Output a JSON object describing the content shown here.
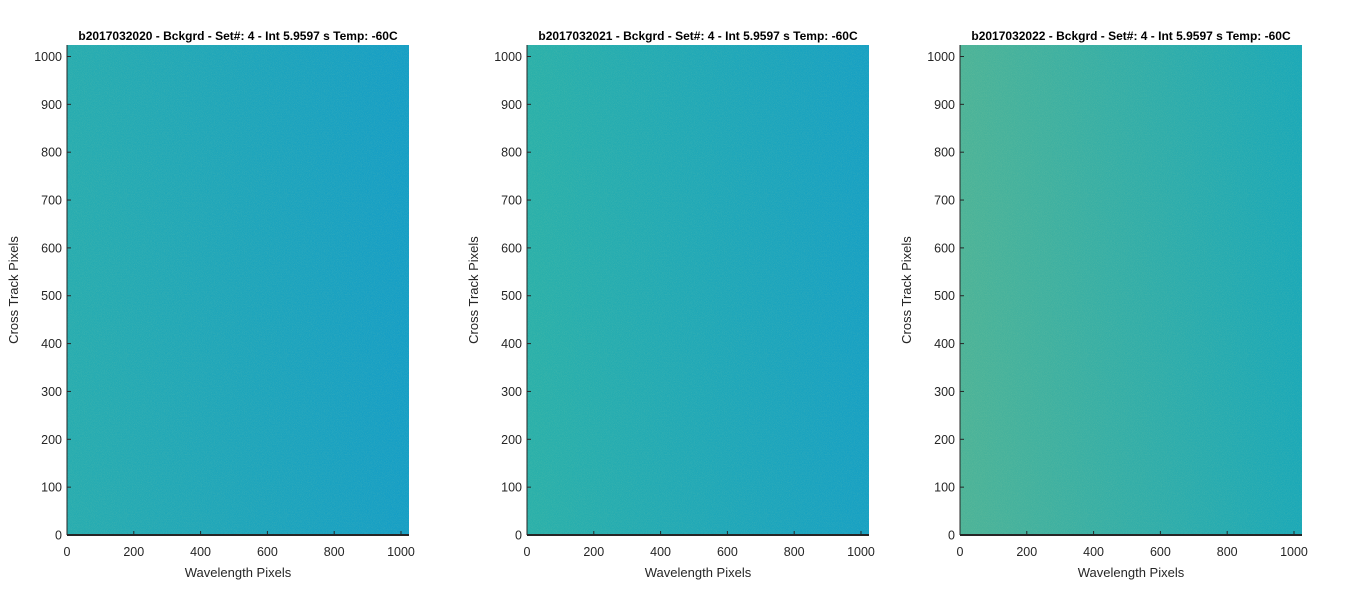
{
  "chart_data": [
    {
      "type": "heatmap",
      "title": "b2017032020 - Bckgrd - Set#: 4 - Int 5.9597 s Temp: -60C",
      "xlabel": "Wavelength Pixels",
      "ylabel": "Cross Track Pixels",
      "xlim": [
        0,
        1024
      ],
      "ylim": [
        0,
        1024
      ],
      "xticks": [
        0,
        200,
        400,
        600,
        800,
        1000
      ],
      "yticks": [
        0,
        100,
        200,
        300,
        400,
        500,
        600,
        700,
        800,
        900,
        1000
      ],
      "colors": {
        "left": "#27acb0",
        "right": "#159ec6"
      }
    },
    {
      "type": "heatmap",
      "title": "b2017032021 - Bckgrd - Set#: 4 - Int 5.9597 s Temp: -60C",
      "xlabel": "Wavelength Pixels",
      "ylabel": "Cross Track Pixels",
      "xlim": [
        0,
        1024
      ],
      "ylim": [
        0,
        1024
      ],
      "xticks": [
        0,
        200,
        400,
        600,
        800,
        1000
      ],
      "yticks": [
        0,
        100,
        200,
        300,
        400,
        500,
        600,
        700,
        800,
        900,
        1000
      ],
      "colors": {
        "left": "#2ab0aa",
        "right": "#16a0c4"
      }
    },
    {
      "type": "heatmap",
      "title": "b2017032022 - Bckgrd - Set#: 4 - Int 5.9597 s Temp: -60C",
      "xlabel": "Wavelength Pixels",
      "ylabel": "Cross Track Pixels",
      "xlim": [
        0,
        1024
      ],
      "ylim": [
        0,
        1024
      ],
      "xticks": [
        0,
        200,
        400,
        600,
        800,
        1000
      ],
      "yticks": [
        0,
        100,
        200,
        300,
        400,
        500,
        600,
        700,
        800,
        900,
        1000
      ],
      "colors": {
        "left": "#4cb398",
        "right": "#1aa8b8"
      }
    }
  ]
}
